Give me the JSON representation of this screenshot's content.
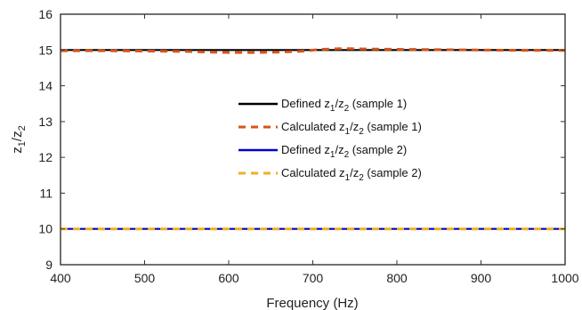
{
  "chart_data": {
    "type": "line",
    "title": "",
    "xlabel": "Frequency (Hz)",
    "ylabel_main": "z",
    "ylabel_sub1": "1",
    "ylabel_sep": "/z",
    "ylabel_sub2": "2",
    "xlim": [
      400,
      1000
    ],
    "ylim": [
      9,
      16
    ],
    "xticks": [
      400,
      500,
      600,
      700,
      800,
      900,
      1000
    ],
    "yticks": [
      9,
      10,
      11,
      12,
      13,
      14,
      15,
      16
    ],
    "grid": false,
    "legend_position": "center-right",
    "series": [
      {
        "name": "Defined z1/z2 (sample 1)",
        "legend": {
          "pre": "Defined z",
          "sub1": "1",
          "mid": "/z",
          "sub2": "2",
          "post": " (sample 1)"
        },
        "style": "solid",
        "color": "#000000",
        "x": [
          400,
          1000
        ],
        "y": [
          15,
          15
        ]
      },
      {
        "name": "Calculated z1/z2 (sample 1)",
        "legend": {
          "pre": "Calculated z",
          "sub1": "1",
          "mid": "/z",
          "sub2": "2",
          "post": "  (sample 1)"
        },
        "style": "dashed",
        "color": "#d95319",
        "x": [
          400,
          450,
          500,
          550,
          580,
          600,
          630,
          660,
          690,
          710,
          735,
          760,
          800,
          850,
          900,
          950,
          1000
        ],
        "y": [
          14.98,
          14.98,
          14.97,
          14.96,
          14.94,
          14.93,
          14.93,
          14.94,
          14.97,
          15.02,
          15.04,
          15.03,
          15.02,
          15.01,
          15.0,
          14.99,
          14.99
        ]
      },
      {
        "name": "Defined z1/z2 (sample 2)",
        "legend": {
          "pre": "Defined z",
          "sub1": "1",
          "mid": "/z",
          "sub2": "2",
          "post": "  (sample 2)"
        },
        "style": "solid",
        "color": "#0000cc",
        "x": [
          400,
          1000
        ],
        "y": [
          10,
          10
        ]
      },
      {
        "name": "Calculated z1/z2 (sample 2)",
        "legend": {
          "pre": "Calculated z",
          "sub1": "1",
          "mid": "/z",
          "sub2": "2",
          "post": "  (sample 2)"
        },
        "style": "dashed",
        "color": "#edb120",
        "x": [
          400,
          1000
        ],
        "y": [
          10,
          10
        ]
      }
    ]
  }
}
